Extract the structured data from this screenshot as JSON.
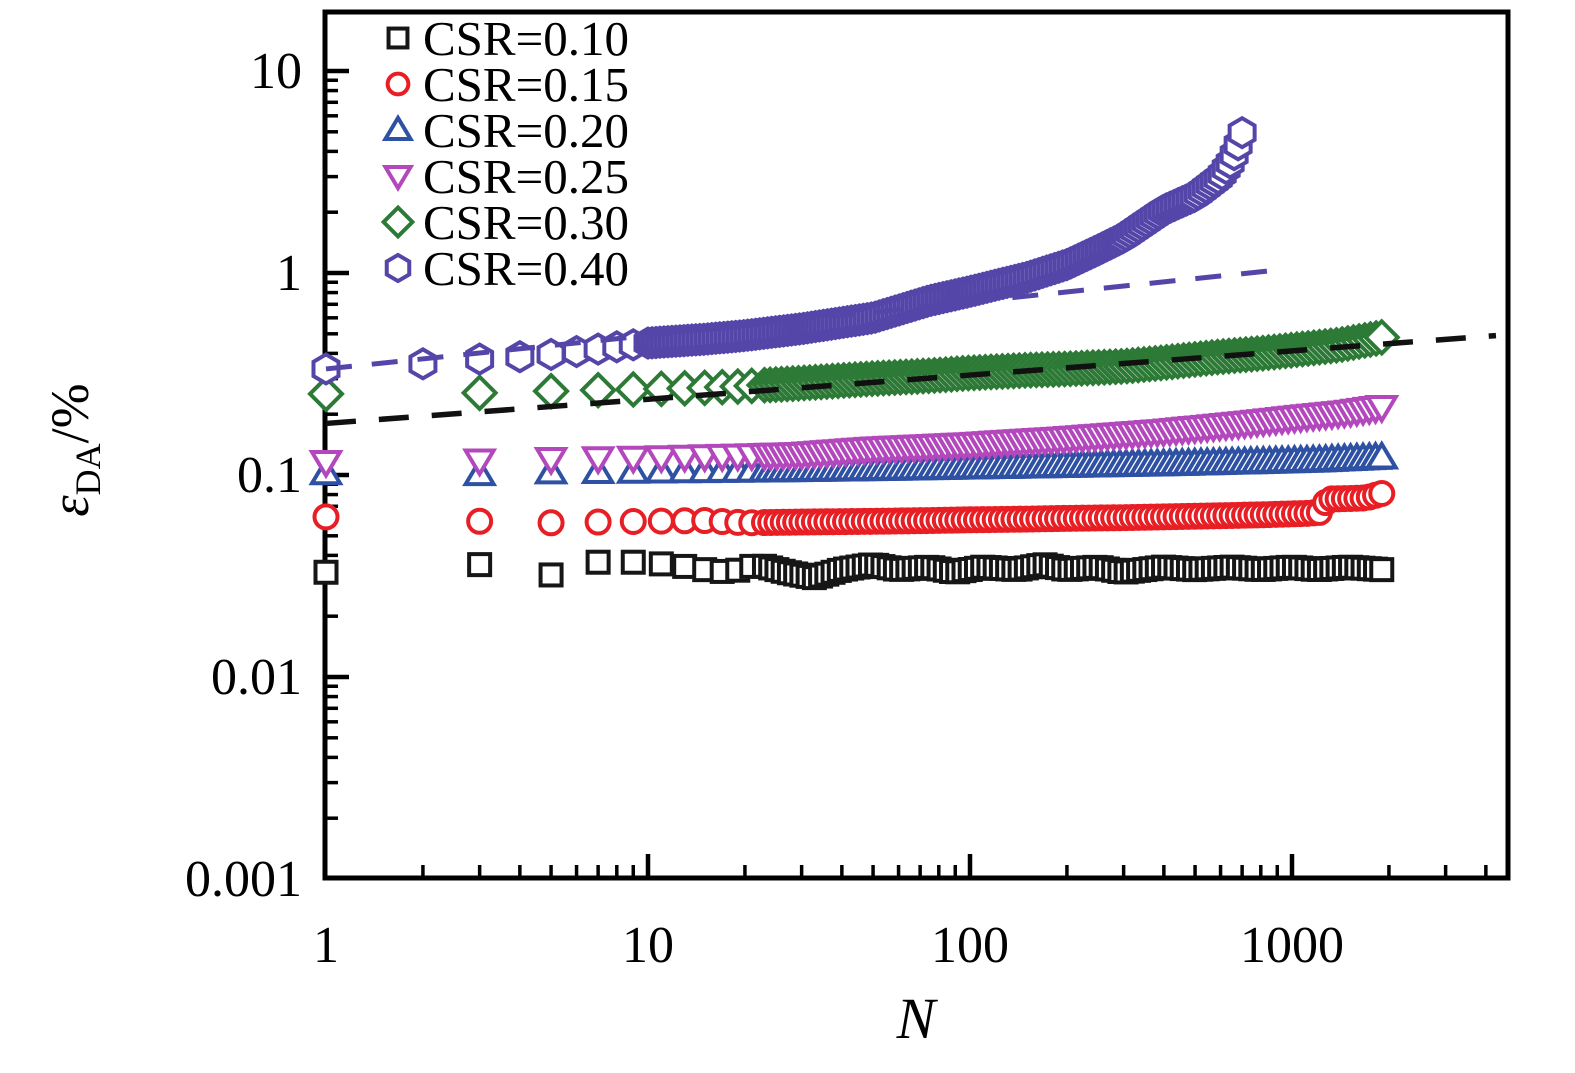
{
  "chart_data": {
    "type": "scatter",
    "title": "",
    "xlabel": "N",
    "ylabel": "εDA/%",
    "ylabel_parts": {
      "symbol": "ε",
      "subscript": "DA",
      "suffix": "/%"
    },
    "x_scale": "log",
    "y_scale": "log",
    "xlim": [
      1,
      4700
    ],
    "ylim": [
      0.001,
      20
    ],
    "x_major_ticks": [
      1,
      10,
      100,
      1000
    ],
    "x_tick_labels": [
      "1",
      "10",
      "100",
      "1000"
    ],
    "y_major_ticks": [
      10,
      1,
      0.1,
      0.01,
      0.001
    ],
    "y_tick_labels": [
      "10",
      "1",
      "0.1",
      "0.01",
      "0.001"
    ],
    "grid": false,
    "legend_position": "top-left",
    "axis_color": "#000000",
    "series": [
      {
        "name": "csr-0-10",
        "label": "CSR=0.10",
        "marker": "square",
        "color": "#161616",
        "points": [
          [
            1,
            0.033
          ],
          [
            3,
            0.036
          ],
          [
            5,
            0.032
          ],
          [
            7,
            0.037
          ],
          [
            9,
            0.037
          ],
          [
            12,
            0.036
          ],
          [
            15,
            0.034
          ],
          [
            18,
            0.033
          ],
          [
            22,
            0.036
          ],
          [
            27,
            0.033
          ],
          [
            33,
            0.031
          ],
          [
            40,
            0.034
          ],
          [
            50,
            0.036
          ],
          [
            60,
            0.034
          ],
          [
            75,
            0.035
          ],
          [
            90,
            0.033
          ],
          [
            110,
            0.035
          ],
          [
            140,
            0.034
          ],
          [
            170,
            0.036
          ],
          [
            200,
            0.034
          ],
          [
            250,
            0.035
          ],
          [
            300,
            0.033
          ],
          [
            400,
            0.035
          ],
          [
            500,
            0.034
          ],
          [
            650,
            0.035
          ],
          [
            800,
            0.034
          ],
          [
            1000,
            0.035
          ],
          [
            1200,
            0.034
          ],
          [
            1500,
            0.035
          ],
          [
            1900,
            0.034
          ]
        ],
        "sampling": {
          "discrete": [
            1,
            3,
            5,
            7,
            9,
            11,
            13,
            15,
            17,
            19,
            21
          ],
          "dense": [
            23,
            1900,
            100
          ]
        }
      },
      {
        "name": "csr-0-15",
        "label": "CSR=0.15",
        "marker": "circle",
        "color": "#e81e25",
        "points": [
          [
            1,
            0.062
          ],
          [
            3,
            0.059
          ],
          [
            5,
            0.058
          ],
          [
            7,
            0.0585
          ],
          [
            10,
            0.059
          ],
          [
            15,
            0.0595
          ],
          [
            20,
            0.058
          ],
          [
            30,
            0.0585
          ],
          [
            50,
            0.059
          ],
          [
            75,
            0.0595
          ],
          [
            100,
            0.06
          ],
          [
            150,
            0.0605
          ],
          [
            200,
            0.061
          ],
          [
            300,
            0.0615
          ],
          [
            500,
            0.0625
          ],
          [
            800,
            0.0635
          ],
          [
            1100,
            0.0645
          ],
          [
            1250,
            0.0655
          ],
          [
            1280,
            0.076
          ],
          [
            1500,
            0.0765
          ],
          [
            1700,
            0.077
          ],
          [
            1900,
            0.081
          ]
        ],
        "sampling": {
          "discrete": [
            1,
            3,
            5,
            7,
            9,
            11,
            13,
            15,
            17,
            19,
            21
          ],
          "dense": [
            23,
            1900,
            100
          ]
        }
      },
      {
        "name": "csr-0-20",
        "label": "CSR=0.20",
        "marker": "triangle-up",
        "color": "#2e51a3",
        "points": [
          [
            1,
            0.102
          ],
          [
            3,
            0.101
          ],
          [
            5,
            0.103
          ],
          [
            10,
            0.104
          ],
          [
            20,
            0.105
          ],
          [
            50,
            0.107
          ],
          [
            100,
            0.109
          ],
          [
            200,
            0.111
          ],
          [
            400,
            0.113
          ],
          [
            800,
            0.116
          ],
          [
            1200,
            0.118
          ],
          [
            1900,
            0.122
          ]
        ],
        "sampling": {
          "discrete": [
            1,
            3,
            5,
            7,
            9,
            11,
            13,
            15,
            17,
            19,
            21
          ],
          "dense": [
            23,
            1900,
            100
          ]
        }
      },
      {
        "name": "csr-0-25",
        "label": "CSR=0.25",
        "marker": "triangle-down",
        "color": "#b348bd",
        "points": [
          [
            1,
            0.116
          ],
          [
            3,
            0.118
          ],
          [
            5,
            0.12
          ],
          [
            10,
            0.122
          ],
          [
            20,
            0.125
          ],
          [
            30,
            0.127
          ],
          [
            50,
            0.135
          ],
          [
            100,
            0.142
          ],
          [
            200,
            0.152
          ],
          [
            400,
            0.165
          ],
          [
            700,
            0.18
          ],
          [
            1100,
            0.195
          ],
          [
            1500,
            0.205
          ],
          [
            1900,
            0.217
          ]
        ],
        "sampling": {
          "discrete": [
            1,
            3,
            5,
            7,
            9,
            11,
            13,
            15,
            17,
            19,
            21
          ],
          "dense": [
            23,
            1900,
            100
          ]
        }
      },
      {
        "name": "csr-0-30",
        "label": "CSR=0.30",
        "marker": "diamond",
        "color": "#2d7a37",
        "points": [
          [
            1,
            0.252
          ],
          [
            3,
            0.255
          ],
          [
            5,
            0.26
          ],
          [
            7,
            0.263
          ],
          [
            10,
            0.266
          ],
          [
            15,
            0.27
          ],
          [
            20,
            0.275
          ],
          [
            30,
            0.285
          ],
          [
            50,
            0.3
          ],
          [
            75,
            0.31
          ],
          [
            100,
            0.32
          ],
          [
            150,
            0.33
          ],
          [
            200,
            0.335
          ],
          [
            300,
            0.345
          ],
          [
            400,
            0.36
          ],
          [
            600,
            0.385
          ],
          [
            800,
            0.4
          ],
          [
            1000,
            0.415
          ],
          [
            1400,
            0.44
          ],
          [
            1900,
            0.48
          ]
        ],
        "sampling": {
          "discrete": [
            1,
            3,
            5,
            7,
            9,
            11,
            13,
            15,
            17,
            19,
            21
          ],
          "dense": [
            23,
            1900,
            110
          ]
        }
      },
      {
        "name": "csr-0-40",
        "label": "CSR=0.40",
        "marker": "hexagon",
        "color": "#5446a9",
        "points": [
          [
            1,
            0.335
          ],
          [
            2,
            0.355
          ],
          [
            3,
            0.375
          ],
          [
            4,
            0.385
          ],
          [
            5,
            0.395
          ],
          [
            7,
            0.42
          ],
          [
            10,
            0.45
          ],
          [
            15,
            0.47
          ],
          [
            20,
            0.49
          ],
          [
            30,
            0.53
          ],
          [
            50,
            0.6
          ],
          [
            75,
            0.73
          ],
          [
            100,
            0.81
          ],
          [
            150,
            0.95
          ],
          [
            200,
            1.1
          ],
          [
            250,
            1.3
          ],
          [
            300,
            1.5
          ],
          [
            400,
            2.05
          ],
          [
            500,
            2.4
          ],
          [
            600,
            3.0
          ],
          [
            650,
            3.6
          ],
          [
            680,
            4.3
          ],
          [
            700,
            4.95
          ]
        ],
        "sampling": {
          "discrete": [
            1,
            2,
            3,
            4,
            5,
            6,
            7,
            8,
            9
          ],
          "dense": [
            10,
            700,
            150
          ]
        }
      }
    ],
    "ref_lines": [
      {
        "name": "power-law-fit-black",
        "style": "dashed",
        "color": "#111111",
        "width": 5.5,
        "dash": [
          30,
          23
        ],
        "points": [
          [
            1,
            0.18
          ],
          [
            4300,
            0.49
          ]
        ]
      },
      {
        "name": "power-law-fit-purple",
        "style": "dashed",
        "color": "#5446a9",
        "width": 5,
        "dash": [
          26,
          20
        ],
        "points": [
          [
            1,
            0.335
          ],
          [
            880,
            1.03
          ]
        ]
      }
    ],
    "legend": {
      "items": [
        "CSR=0.10",
        "CSR=0.15",
        "CSR=0.20",
        "CSR=0.25",
        "CSR=0.30",
        "CSR=0.40"
      ]
    }
  }
}
